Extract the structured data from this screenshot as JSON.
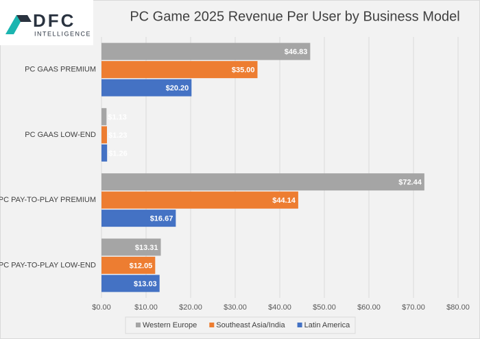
{
  "logo": {
    "name": "DFC",
    "tagline": "INTELLIGENCE"
  },
  "chart_data": {
    "type": "hbar",
    "title": "PC Game 2025 Revenue Per User by Business Model",
    "categories": [
      "PC GAAS PREMIUM",
      "PC GAAS LOW-END",
      "PC PAY-TO-PLAY PREMIUM",
      "PC PAY-TO-PLAY LOW-END"
    ],
    "series": [
      {
        "name": "Western Europe",
        "color": "#a5a5a5",
        "values": [
          46.83,
          1.13,
          72.44,
          13.31
        ],
        "value_labels": [
          "$46.83",
          "$1.13",
          "$72.44",
          "$13.31"
        ]
      },
      {
        "name": "Southeast Asia/India",
        "color": "#ed7d31",
        "values": [
          35.0,
          1.23,
          44.14,
          12.05
        ],
        "value_labels": [
          "$35.00",
          "$1.23",
          "$44.14",
          "$12.05"
        ]
      },
      {
        "name": "Latin America",
        "color": "#4472c4",
        "values": [
          20.2,
          1.26,
          16.67,
          13.03
        ],
        "value_labels": [
          "$20.20",
          "$1.26",
          "$16.67",
          "$13.03"
        ]
      }
    ],
    "xlim": [
      0,
      80
    ],
    "xticks": [
      {
        "value": 0,
        "label": "$0.00"
      },
      {
        "value": 10,
        "label": "$10.00"
      },
      {
        "value": 20,
        "label": "$20.00"
      },
      {
        "value": 30,
        "label": "$30.00"
      },
      {
        "value": 40,
        "label": "$40.00"
      },
      {
        "value": 50,
        "label": "$50.00"
      },
      {
        "value": 60,
        "label": "$60.00"
      },
      {
        "value": 70,
        "label": "$70.00"
      },
      {
        "value": 80,
        "label": "$80.00"
      }
    ],
    "grid": true,
    "legend": "bottom"
  }
}
